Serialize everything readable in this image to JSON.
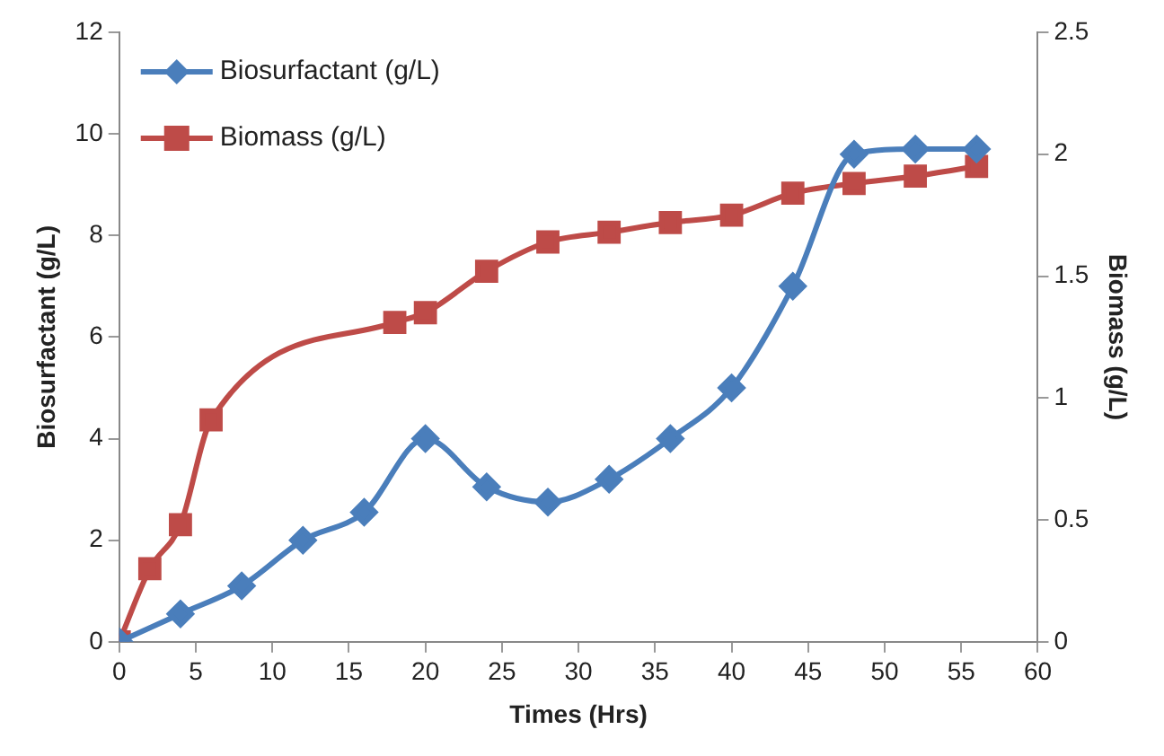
{
  "chart_data": {
    "type": "line",
    "xlabel": "Times (Hrs)",
    "ylabel": "Biosurfactant (g/L)",
    "y2label": "Biomass (g/L)",
    "xlim": [
      0,
      60
    ],
    "xticks": [
      0,
      5,
      10,
      15,
      20,
      25,
      30,
      35,
      40,
      45,
      50,
      55,
      60
    ],
    "ylim": [
      0,
      12
    ],
    "yticks": [
      0,
      2,
      4,
      6,
      8,
      10,
      12
    ],
    "y2lim": [
      0,
      2.5
    ],
    "y2ticks": [
      0,
      0.5,
      1,
      1.5,
      2,
      2.5
    ],
    "grid": false,
    "legend": "top left",
    "series": [
      {
        "name": "Biosurfactant (g/L)",
        "color": "#4a7ebb",
        "marker": "diamond",
        "x": [
          0,
          4,
          8,
          12,
          16,
          20,
          24,
          28,
          32,
          36,
          40,
          44,
          48,
          52,
          56
        ],
        "values": [
          0,
          0.55,
          1.1,
          2.0,
          2.55,
          4.0,
          3.05,
          2.75,
          3.2,
          4.0,
          5.0,
          7.0,
          9.6,
          9.7,
          9.7
        ]
      },
      {
        "name": "Biomass (g/L)",
        "color": "#be4b48",
        "marker": "square",
        "axis": "y2",
        "x": [
          0,
          2,
          4,
          6,
          18,
          20,
          24,
          28,
          32,
          36,
          40,
          44,
          48,
          52,
          56
        ],
        "values": [
          0,
          0.3,
          0.48,
          0.91,
          1.31,
          1.35,
          1.52,
          1.64,
          1.68,
          1.72,
          1.75,
          1.84,
          1.88,
          1.91,
          1.95
        ]
      }
    ]
  }
}
